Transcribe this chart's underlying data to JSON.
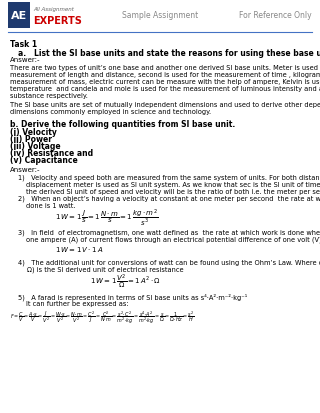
{
  "bg_color": "#ffffff",
  "header_line_color": "#4472c4",
  "logo_bg": "#1f3a6e",
  "logo_text": "AE",
  "logo_sub1": "All Assignment",
  "logo_sub2": "EXPERTS",
  "logo_sub2_color": "#cc0000",
  "header_center": "Sample Assignment",
  "header_right": "For Reference Only",
  "figsize": [
    3.2,
    4.14
  ],
  "dpi": 100
}
